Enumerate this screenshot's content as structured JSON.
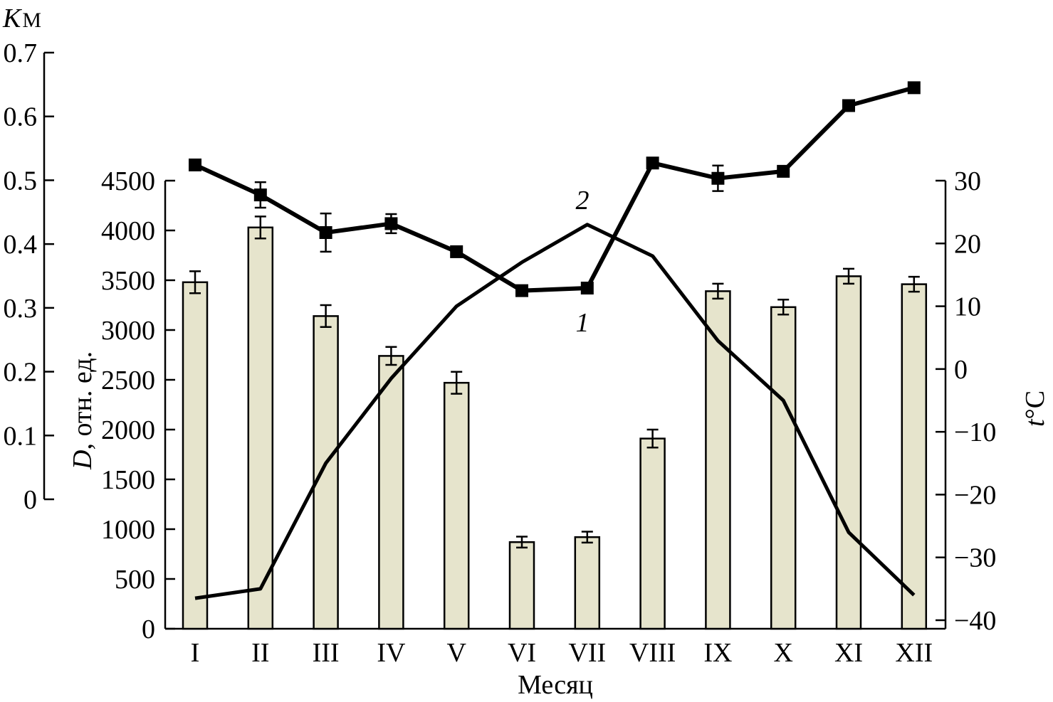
{
  "chart_data": {
    "type": "bar",
    "title": "",
    "xlabel": "Месяц",
    "categories": [
      "I",
      "II",
      "III",
      "IV",
      "V",
      "VI",
      "VII",
      "VIII",
      "IX",
      "X",
      "XI",
      "XII"
    ],
    "axes": {
      "km": {
        "label_main": "K",
        "label_sub": "М",
        "ylim": [
          0,
          0.7
        ],
        "ticks": [
          "0",
          "0.1",
          "0.2",
          "0.3",
          "0.4",
          "0.5",
          "0.6",
          "0.7"
        ],
        "position": "far-left"
      },
      "d": {
        "label_main": "D",
        "label_rest": ", отн. ед.",
        "ylim": [
          0,
          4500
        ],
        "ticks": [
          "0",
          "500",
          "1000",
          "1500",
          "2000",
          "2500",
          "3000",
          "3500",
          "4000",
          "4500"
        ],
        "position": "left"
      },
      "t": {
        "label_main": "t",
        "label_rest": "°C",
        "ylim": [
          -40,
          30
        ],
        "ticks": [
          "−40",
          "−30",
          "−20",
          "−10",
          "0",
          "10",
          "20",
          "30"
        ],
        "position": "right"
      }
    },
    "series": [
      {
        "kind": "bar",
        "axis": "d",
        "values": [
          3480,
          4030,
          3140,
          2740,
          2470,
          870,
          920,
          1910,
          3390,
          3230,
          3540,
          3460
        ],
        "errors": [
          110,
          110,
          110,
          90,
          110,
          55,
          55,
          90,
          75,
          75,
          75,
          75
        ]
      },
      {
        "kind": "line",
        "name": "1",
        "axis": "km",
        "marker": "square",
        "values": [
          0.524,
          0.477,
          0.418,
          0.432,
          0.388,
          0.327,
          0.331,
          0.527,
          0.503,
          0.514,
          0.617,
          0.645
        ],
        "errors": [
          0,
          0.02,
          0.03,
          0.015,
          0,
          0,
          0,
          0,
          0.02,
          0,
          0,
          0
        ]
      },
      {
        "kind": "line",
        "name": "2",
        "axis": "t",
        "marker": "none",
        "values": [
          -36.5,
          -35,
          -15,
          -1.5,
          10,
          17,
          23,
          18,
          4.5,
          -5,
          -26,
          -36
        ]
      }
    ],
    "annotations": [
      "1",
      "2"
    ],
    "grid": false
  }
}
